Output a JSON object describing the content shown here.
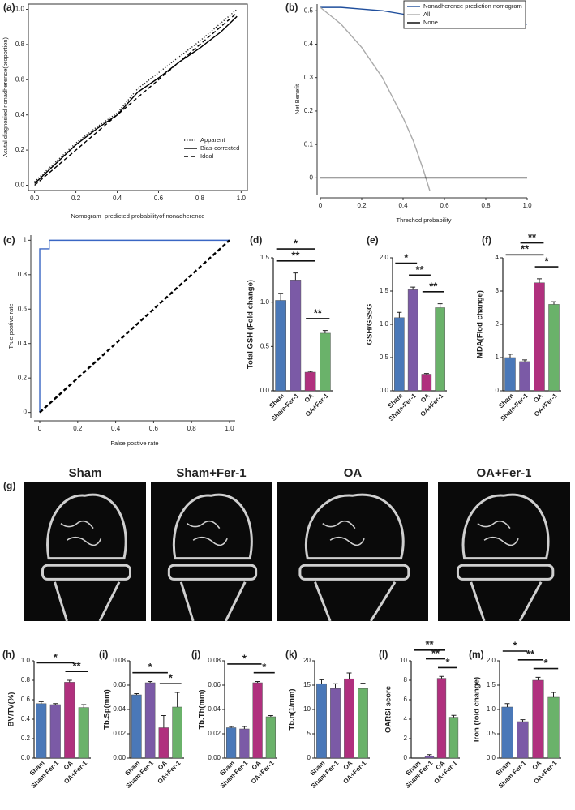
{
  "chart_data": [
    {
      "type": "line",
      "label": "(a)",
      "xlabel": "Nomogram−predicted probabilityof nonadherence",
      "ylabel": "Acutal diagnosied nonadherence(proportion)",
      "xlim": [
        -0.03,
        1.03
      ],
      "ylim": [
        -0.03,
        1.03
      ],
      "frame": true,
      "legend": "bottom-right",
      "xticks": [
        {
          "value": 0,
          "label": "0.0"
        },
        0.2,
        0.4,
        0.6,
        0.8,
        {
          "value": 1,
          "label": "1.0"
        }
      ],
      "yticks": [
        {
          "value": 0,
          "label": "0.0"
        },
        0.2,
        0.4,
        0.6,
        0.8,
        {
          "value": 1,
          "label": "1.0"
        }
      ],
      "x": [
        0,
        0.1,
        0.2,
        0.3,
        0.4,
        0.5,
        0.6,
        0.7,
        0.8,
        0.9,
        0.98
      ],
      "series": [
        {
          "name": "Apparent",
          "color": "#222222",
          "dash": "dotted",
          "values": [
            0.02,
            0.13,
            0.24,
            0.33,
            0.41,
            0.55,
            0.64,
            0.73,
            0.82,
            0.92,
            1.0
          ]
        },
        {
          "name": "Bias-corrected",
          "color": "#000000",
          "dash": "solid",
          "values": [
            0.01,
            0.12,
            0.23,
            0.32,
            0.4,
            0.53,
            0.61,
            0.7,
            0.78,
            0.87,
            0.96
          ]
        },
        {
          "name": "Ideal",
          "color": "#000000",
          "dash": "dashed",
          "values": [
            0,
            0.1,
            0.2,
            0.3,
            0.4,
            0.5,
            0.6,
            0.7,
            0.8,
            0.9,
            0.98
          ]
        }
      ]
    },
    {
      "type": "line",
      "label": "(b)",
      "xlabel": "Threshod probability",
      "ylabel": "Net Benefit",
      "xlim": [
        0,
        1
      ],
      "ylim": [
        -0.05,
        0.52
      ],
      "frame": false,
      "legend": "top-right",
      "xticks": [
        0,
        0.2,
        0.4,
        0.6,
        0.8,
        {
          "value": 1,
          "label": "1.0"
        }
      ],
      "yticks": [
        0,
        0.1,
        0.2,
        0.3,
        0.4,
        0.5
      ],
      "x": [
        0,
        0.1,
        0.2,
        0.3,
        0.4,
        0.45,
        0.5,
        0.53,
        0.6,
        0.7,
        0.72,
        0.73,
        0.8,
        0.81,
        0.9,
        1.0
      ],
      "series": [
        {
          "name": "Nonadherence prediction nomogram",
          "color": "#1f4e9c",
          "dash": "solid",
          "values": [
            0.51,
            0.51,
            0.505,
            0.5,
            0.49,
            0.47,
            0.485,
            0.48,
            0.475,
            0.46,
            0.46,
            0.5,
            0.49,
            0.46,
            0.46,
            0.46
          ]
        },
        {
          "name": "All",
          "color": "#aaaaaa",
          "dash": "solid",
          "values": [
            0.51,
            0.46,
            0.39,
            0.3,
            0.18,
            0.11,
            0.02,
            -0.04,
            null,
            null,
            null,
            null,
            null,
            null,
            null,
            null
          ]
        },
        {
          "name": "None",
          "color": "#000000",
          "dash": "solid",
          "values": [
            0,
            0,
            0,
            0,
            0,
            0,
            0,
            0,
            0,
            0,
            0,
            0,
            0,
            0,
            0,
            0
          ]
        }
      ]
    },
    {
      "type": "line",
      "label": "(c)",
      "xlabel": "False postive rate",
      "ylabel": "True postive rate",
      "xlim": [
        -0.03,
        1.03
      ],
      "ylim": [
        -0.03,
        1.03
      ],
      "frame": false,
      "xticks": [
        0,
        0.2,
        0.4,
        0.6,
        0.8,
        {
          "value": 1,
          "label": "1.0"
        }
      ],
      "yticks": [
        0,
        0.2,
        0.4,
        0.6,
        0.8,
        1
      ],
      "series": [
        {
          "color": "#3a66c4",
          "dash": "solid",
          "x": [
            0,
            0,
            0.05,
            0.05,
            1.0
          ],
          "values": [
            0,
            0.95,
            0.95,
            1.0,
            1.0
          ]
        },
        {
          "color": "#000000",
          "dash": "dashed",
          "x": [
            0,
            1.0
          ],
          "values": [
            0,
            1.0
          ]
        }
      ]
    },
    {
      "type": "bar",
      "label": "(d)",
      "ylabel": "Total GSH (Fold change)",
      "ylim": [
        0,
        1.5
      ],
      "yticks": [
        {
          "value": 0,
          "label": "0.0"
        },
        0.5,
        {
          "value": 1,
          "label": "1.0"
        },
        1.5
      ],
      "categories": [
        "Sham",
        "Sham-Fer-1",
        "OA",
        "OA+Fer-1"
      ],
      "colors": [
        "#4a78b8",
        "#7b5aa6",
        "#b0307e",
        "#6ab26a"
      ],
      "values": [
        1.02,
        1.25,
        0.21,
        0.65
      ],
      "errors": [
        0.08,
        0.08,
        0.01,
        0.03
      ],
      "annotations": [
        {
          "label": "*",
          "pair": [
            0,
            2
          ]
        },
        {
          "label": "**",
          "pair": [
            0,
            2
          ]
        },
        {
          "label": "**",
          "pair": [
            2,
            3
          ]
        }
      ]
    },
    {
      "type": "bar",
      "label": "(e)",
      "ylabel": "GSH/GSSG",
      "ylim": [
        0,
        2
      ],
      "yticks": [
        {
          "value": 0,
          "label": "0.0"
        },
        0.5,
        {
          "value": 1,
          "label": "1.0"
        },
        1.5,
        {
          "value": 2,
          "label": "2.0"
        }
      ],
      "categories": [
        "Sham",
        "Sham-Fer-1",
        "OA",
        "OA+Fer-1"
      ],
      "colors": [
        "#4a78b8",
        "#7b5aa6",
        "#b0307e",
        "#6ab26a"
      ],
      "values": [
        1.1,
        1.52,
        0.25,
        1.25
      ],
      "errors": [
        0.08,
        0.04,
        0.01,
        0.06
      ],
      "annotations": [
        {
          "label": "*",
          "pair": [
            0,
            1
          ]
        },
        {
          "label": "**",
          "pair": [
            1,
            2
          ]
        },
        {
          "label": "**",
          "pair": [
            2,
            3
          ]
        }
      ]
    },
    {
      "type": "bar",
      "label": "(f)",
      "ylabel": "MDA(Flod change)",
      "ylim": [
        0,
        4
      ],
      "yticks": [
        0,
        1,
        2,
        3,
        4
      ],
      "categories": [
        "Sham",
        "Sham-Fer-1",
        "OA",
        "OA+Fer-1"
      ],
      "colors": [
        "#4a78b8",
        "#7b5aa6",
        "#b0307e",
        "#6ab26a"
      ],
      "values": [
        1.0,
        0.88,
        3.25,
        2.6
      ],
      "errors": [
        0.1,
        0.05,
        0.12,
        0.08
      ],
      "annotations": [
        {
          "label": "**",
          "pair": [
            1,
            2
          ]
        },
        {
          "label": "**",
          "pair": [
            0,
            2
          ]
        },
        {
          "label": "*",
          "pair": [
            2,
            3
          ]
        }
      ]
    },
    {
      "type": "bar",
      "label": "(h)",
      "ylabel": "BV/TV(%)",
      "ylim": [
        0,
        1
      ],
      "yticks": [
        {
          "value": 0,
          "label": "0.0"
        },
        0.2,
        0.4,
        0.6,
        0.8,
        {
          "value": 1,
          "label": "1.0"
        }
      ],
      "categories": [
        "Sham",
        "Sham-Fer-1",
        "OA",
        "OA+Fer-1"
      ],
      "colors": [
        "#4a78b8",
        "#7b5aa6",
        "#b0307e",
        "#6ab26a"
      ],
      "values": [
        0.56,
        0.55,
        0.78,
        0.52
      ],
      "errors": [
        0.02,
        0.01,
        0.02,
        0.03
      ],
      "annotations": [
        {
          "label": "*",
          "pair": [
            0,
            2
          ]
        },
        {
          "label": "**",
          "pair": [
            2,
            3
          ]
        }
      ]
    },
    {
      "type": "bar",
      "label": "(i)",
      "ylabel": "Tb.Sp(mm)",
      "ylim": [
        0,
        0.08
      ],
      "yticks": [
        {
          "value": 0,
          "label": "0.00"
        },
        0.02,
        0.04,
        0.06,
        0.08
      ],
      "categories": [
        "Sham",
        "Sham-Fer-1",
        "OA",
        "OA+Fer-1"
      ],
      "colors": [
        "#4a78b8",
        "#7b5aa6",
        "#b0307e",
        "#6ab26a"
      ],
      "values": [
        0.052,
        0.062,
        0.025,
        0.042
      ],
      "errors": [
        0.001,
        0.001,
        0.01,
        0.012
      ],
      "annotations": [
        {
          "label": "*",
          "pair": [
            0,
            2
          ]
        },
        {
          "label": "*",
          "pair": [
            2,
            3
          ]
        }
      ]
    },
    {
      "type": "bar",
      "label": "(j)",
      "ylabel": "Tb.Th(mm)",
      "ylim": [
        0,
        0.08
      ],
      "yticks": [
        {
          "value": 0,
          "label": "0.00"
        },
        0.02,
        0.04,
        0.06,
        0.08
      ],
      "categories": [
        "Sham",
        "Sham-Fer-1",
        "OA",
        "OA+Fer-1"
      ],
      "colors": [
        "#4a78b8",
        "#7b5aa6",
        "#b0307e",
        "#6ab26a"
      ],
      "values": [
        0.025,
        0.024,
        0.062,
        0.034
      ],
      "errors": [
        0.001,
        0.002,
        0.001,
        0.001
      ],
      "annotations": [
        {
          "label": "*",
          "pair": [
            0,
            2
          ]
        },
        {
          "label": "*",
          "pair": [
            2,
            3
          ]
        }
      ]
    },
    {
      "type": "bar",
      "label": "(k)",
      "ylabel": "Tb.n(1/mm)",
      "ylim": [
        0,
        20
      ],
      "yticks": [
        0,
        5,
        10,
        15,
        20
      ],
      "categories": [
        "Sham",
        "Sham-Fer-1",
        "OA",
        "OA+Fer-1"
      ],
      "colors": [
        "#4a78b8",
        "#7b5aa6",
        "#b0307e",
        "#6ab26a"
      ],
      "values": [
        15.3,
        14.3,
        16.3,
        14.3
      ],
      "errors": [
        0.8,
        1.0,
        1.2,
        1.1
      ]
    },
    {
      "type": "bar",
      "label": "(l)",
      "ylabel": "OARSI score",
      "ylim": [
        0,
        10
      ],
      "yticks": [
        0,
        2,
        4,
        6,
        8,
        10
      ],
      "categories": [
        "Sham",
        "Sham-Fer-1",
        "OA",
        "OA+Fer-1"
      ],
      "colors": [
        "#4a78b8",
        "#7b5aa6",
        "#b0307e",
        "#6ab26a"
      ],
      "values": [
        0,
        0.2,
        8.2,
        4.2
      ],
      "errors": [
        0,
        0.15,
        0.2,
        0.2
      ],
      "annotations": [
        {
          "label": "**",
          "pair": [
            0,
            2
          ]
        },
        {
          "label": "**",
          "pair": [
            1,
            2
          ]
        },
        {
          "label": "*",
          "pair": [
            2,
            3
          ]
        }
      ]
    },
    {
      "type": "bar",
      "label": "(m)",
      "ylabel": "Iron (fold change)",
      "ylim": [
        0,
        2
      ],
      "yticks": [
        {
          "value": 0,
          "label": "0.0"
        },
        0.5,
        {
          "value": 1,
          "label": "1.0"
        },
        1.5,
        {
          "value": 2,
          "label": "2.0"
        }
      ],
      "categories": [
        "Sham",
        "Sham-Fer-1",
        "OA",
        "OA+Fer-1"
      ],
      "colors": [
        "#4a78b8",
        "#7b5aa6",
        "#b0307e",
        "#6ab26a"
      ],
      "values": [
        1.05,
        0.75,
        1.6,
        1.25
      ],
      "errors": [
        0.07,
        0.04,
        0.06,
        0.1
      ],
      "annotations": [
        {
          "label": "*",
          "pair": [
            0,
            1
          ]
        },
        {
          "label": "**",
          "pair": [
            1,
            2
          ]
        },
        {
          "label": "*",
          "pair": [
            2,
            3
          ]
        }
      ]
    }
  ],
  "image_panel": {
    "label": "(g)",
    "titles": [
      "Sham",
      "Sham+Fer-1",
      "OA",
      "OA+Fer-1"
    ]
  }
}
